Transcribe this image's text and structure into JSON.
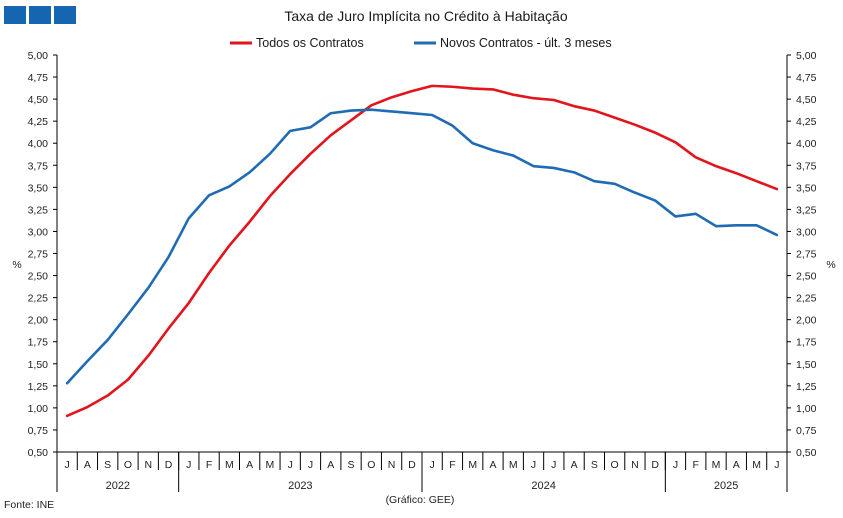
{
  "header": {
    "logo_icon": "ine-logo-blocks"
  },
  "footer": {
    "source": "Fonte: INE",
    "credit": "(Gráfico: GEE)"
  },
  "chart_data": {
    "type": "line",
    "title": "Taxa de Juro Implícita  no Crédito à Habitação",
    "ylabel_left": "%",
    "ylabel_right": "%",
    "ylim": [
      0.5,
      5.0
    ],
    "y_ticks": [
      "0,50",
      "0,75",
      "1,00",
      "1,25",
      "1,50",
      "1,75",
      "2,00",
      "2,25",
      "2,50",
      "2,75",
      "3,00",
      "3,25",
      "3,50",
      "3,75",
      "4,00",
      "4,25",
      "4,50",
      "4,75",
      "5,00"
    ],
    "legend_position": "top",
    "grid": false,
    "x_months": [
      "J",
      "A",
      "S",
      "O",
      "N",
      "D",
      "J",
      "F",
      "M",
      "A",
      "M",
      "J",
      "J",
      "A",
      "S",
      "O",
      "N",
      "D",
      "J",
      "F",
      "M",
      "A",
      "M",
      "J",
      "J",
      "A",
      "S",
      "O",
      "N",
      "D",
      "J",
      "F",
      "M",
      "A",
      "M",
      "J"
    ],
    "x_years": [
      {
        "label": "2022",
        "span": 6
      },
      {
        "label": "2023",
        "span": 12
      },
      {
        "label": "2024",
        "span": 12
      },
      {
        "label": "2025",
        "span": 6
      }
    ],
    "series": [
      {
        "name": "Todos os Contratos",
        "color": "#e2141c",
        "values": [
          0.91,
          1.01,
          1.14,
          1.32,
          1.59,
          1.9,
          2.19,
          2.53,
          2.84,
          3.11,
          3.4,
          3.65,
          3.88,
          4.09,
          4.26,
          4.43,
          4.52,
          4.59,
          4.65,
          4.64,
          4.62,
          4.61,
          4.55,
          4.51,
          4.49,
          4.42,
          4.37,
          4.29,
          4.21,
          4.12,
          4.01,
          3.84,
          3.74,
          3.66,
          3.57,
          3.48
        ]
      },
      {
        "name": "Novos Contratos - últ. 3 meses",
        "color": "#1f6cb4",
        "values": [
          1.28,
          1.53,
          1.77,
          2.06,
          2.36,
          2.71,
          3.15,
          3.41,
          3.51,
          3.67,
          3.88,
          4.14,
          4.18,
          4.34,
          4.37,
          4.38,
          4.36,
          4.34,
          4.32,
          4.2,
          4.0,
          3.92,
          3.86,
          3.74,
          3.72,
          3.67,
          3.57,
          3.54,
          3.44,
          3.35,
          3.17,
          3.2,
          3.06,
          3.07,
          3.07,
          2.96
        ]
      }
    ]
  }
}
